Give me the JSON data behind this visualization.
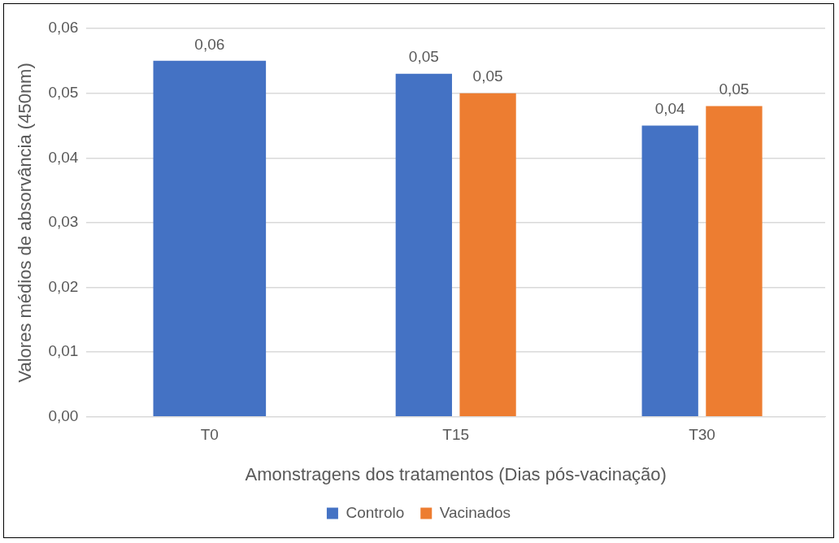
{
  "chart_data": {
    "type": "bar",
    "xlabel": "Amonstragens dos tratamentos (Dias pós-vacinação)",
    "ylabel": "Valores médios de absorvância (450nm)",
    "categories": [
      "T0",
      "T15",
      "T30"
    ],
    "series": [
      {
        "name": "Controlo",
        "color": "#4472c4",
        "values": [
          0.055,
          0.053,
          0.045
        ],
        "value_labels": [
          "0,06",
          "0,05",
          "0,04"
        ]
      },
      {
        "name": "Vacinados",
        "color": "#ed7d31",
        "values": [
          null,
          0.05,
          0.048
        ],
        "value_labels": [
          null,
          "0,05",
          "0,05"
        ]
      }
    ],
    "ylim": [
      0,
      0.06
    ],
    "yticks": [
      {
        "value": 0,
        "label": "0,00"
      },
      {
        "value": 0.01,
        "label": "0,01"
      },
      {
        "value": 0.02,
        "label": "0,02"
      },
      {
        "value": 0.03,
        "label": "0,03"
      },
      {
        "value": 0.04,
        "label": "0,04"
      },
      {
        "value": 0.05,
        "label": "0,05"
      },
      {
        "value": 0.06,
        "label": "0,06"
      }
    ],
    "grid": "y",
    "legend": "bottom"
  }
}
